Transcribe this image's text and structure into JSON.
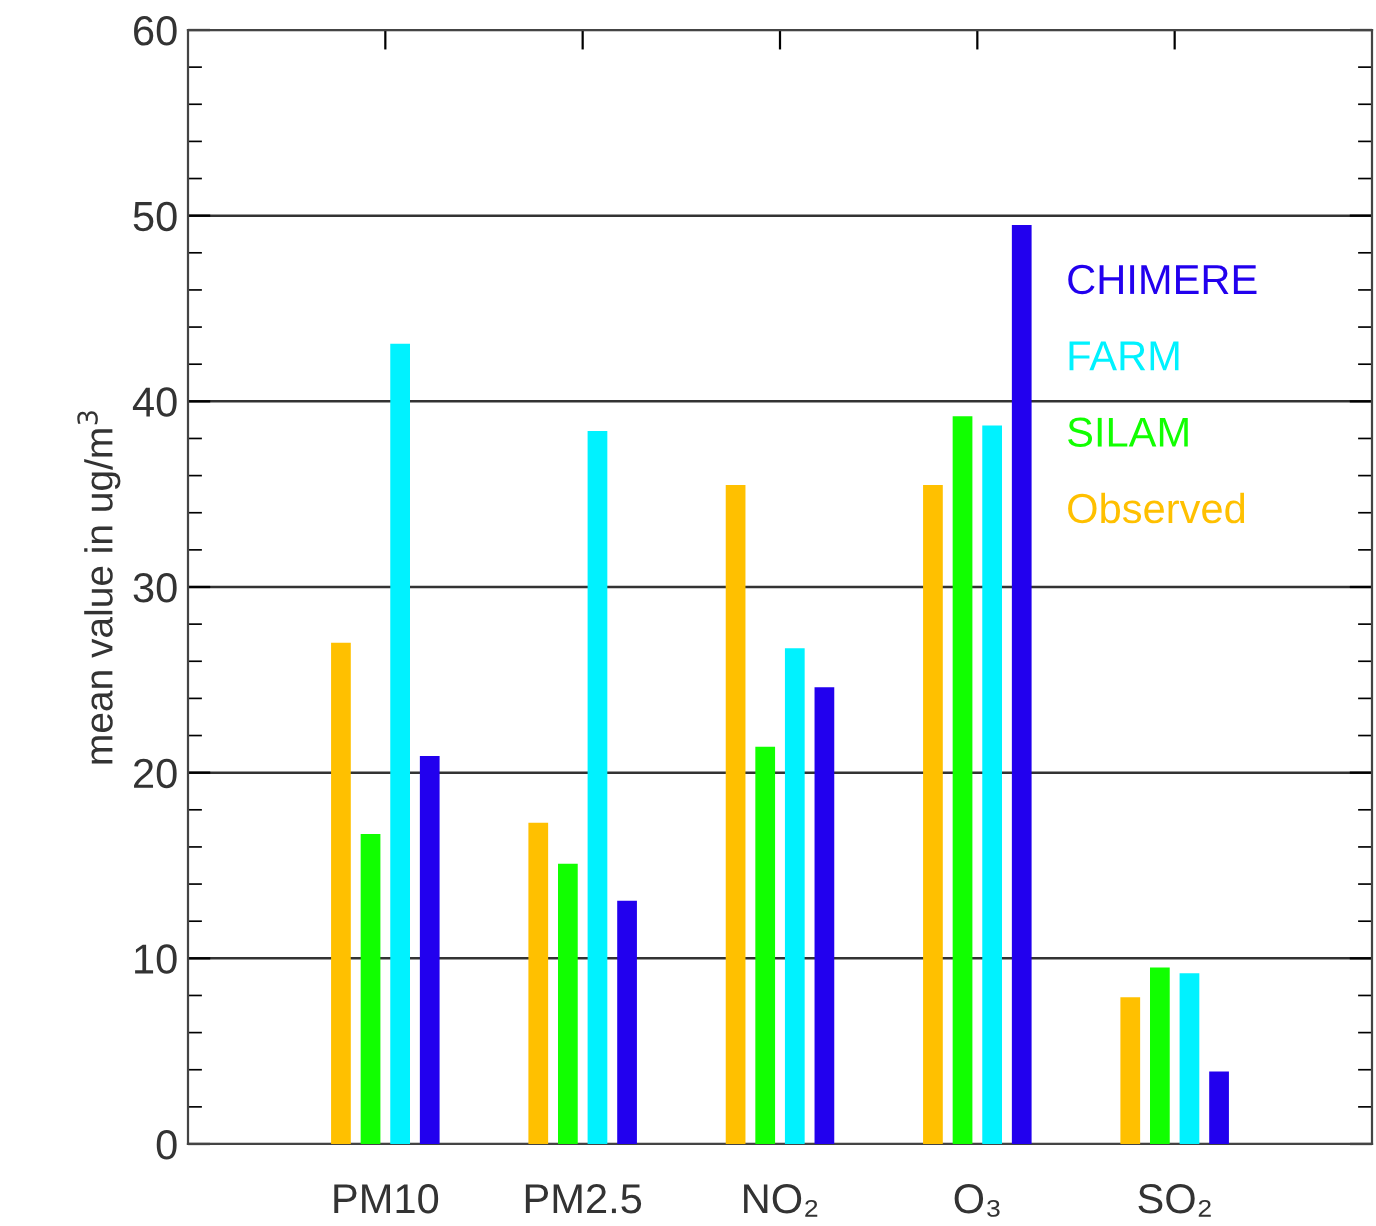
{
  "chart_data": {
    "type": "bar",
    "ylabel": "mean value in ug/m$^{3}$",
    "categories": [
      "PM10",
      "PM2.5",
      "NO₂",
      "O₃",
      "SO₂"
    ],
    "series": [
      {
        "name": "Observed",
        "color": "#ffc000",
        "values": [
          27.0,
          17.3,
          35.5,
          35.5,
          7.9
        ]
      },
      {
        "name": "SILAM",
        "color": "#11ff00",
        "values": [
          16.7,
          15.1,
          21.4,
          39.2,
          9.5
        ]
      },
      {
        "name": "FARM",
        "color": "#00f2ff",
        "values": [
          43.1,
          38.4,
          26.7,
          38.7,
          9.2
        ]
      },
      {
        "name": "CHIMERE",
        "color": "#2200ee",
        "values": [
          20.9,
          13.1,
          24.6,
          49.5,
          3.9
        ]
      }
    ],
    "ylim": [
      0,
      60
    ],
    "yticks": [
      0,
      10,
      20,
      30,
      40,
      50,
      60
    ],
    "grid": "y",
    "legend": "right"
  }
}
